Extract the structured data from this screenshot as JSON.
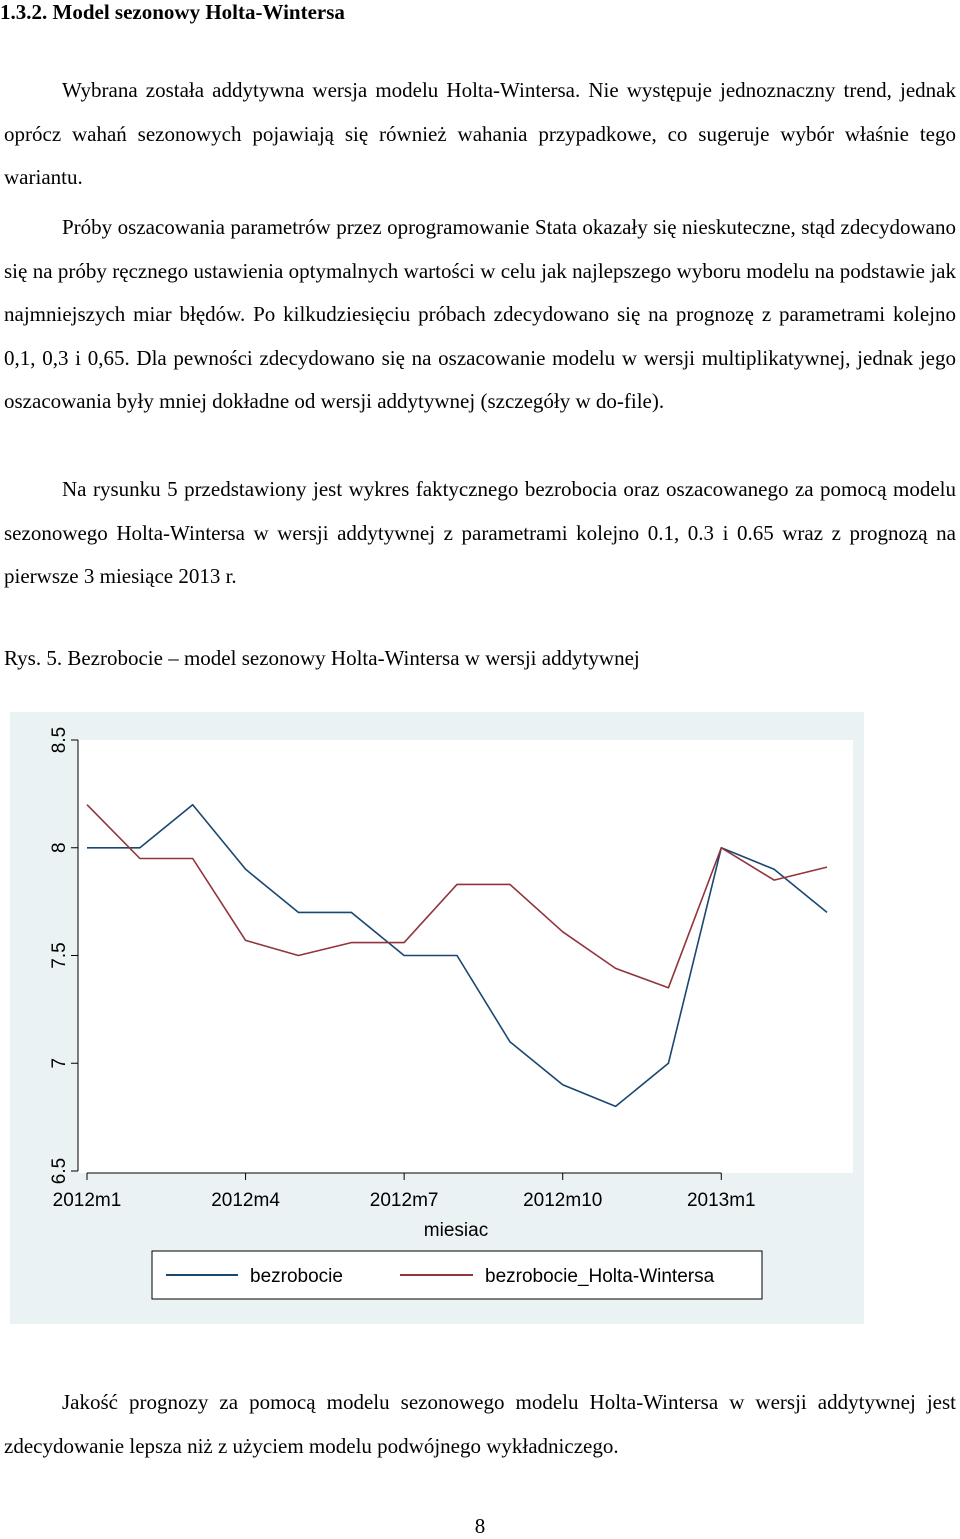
{
  "document": {
    "section_heading": "1.3.2. Model sezonowy Holta-Wintersa",
    "paragraphs": [
      "Wybrana została addytywna wersja modelu Holta-Wintersa. Nie występuje jednoznaczny trend, jednak oprócz wahań sezonowych pojawiają się również wahania przypadkowe, co sugeruje wybór właśnie tego wariantu.",
      "Próby oszacowania parametrów przez oprogramowanie Stata okazały się nieskuteczne, stąd zdecydowano się na próby ręcznego ustawienia optymalnych wartości w celu jak najlepszego wyboru modelu na podstawie jak najmniejszych miar błędów. Po kilkudziesięciu próbach zdecydowano się na prognozę z parametrami kolejno 0,1, 0,3 i 0,65. Dla pewności zdecydowano się na oszacowanie modelu w wersji multiplikatywnej, jednak jego oszacowania były mniej dokładne od wersji addytywnej (szczegóły w do-file).",
      "Na rysunku 5 przedstawiony jest wykres faktycznego bezrobocia oraz oszacowanego za pomocą modelu sezonowego Holta-Wintersa w wersji addytywnej z parametrami kolejno 0.1, 0.3 i 0.65 wraz z prognozą na pierwsze 3 miesiące 2013 r."
    ],
    "figure_caption": "Rys. 5. Bezrobocie – model sezonowy Holta-Wintersa w wersji addytywnej",
    "closing_paragraph": "Jakość prognozy za pomocą modelu sezonowego modelu Holta-Wintersa w wersji addytywnej jest zdecydowanie lepsza niż z użyciem modelu podwójnego wykładniczego.",
    "page_number": "8"
  },
  "chart_data": {
    "type": "line",
    "xlabel": "miesiac",
    "ylabel": "",
    "x_tick_labels": [
      "2012m1",
      "2012m4",
      "2012m7",
      "2012m10",
      "2013m1"
    ],
    "y_tick_labels": [
      "6.5",
      "7",
      "7.5",
      "8",
      "8.5"
    ],
    "ylim": [
      6.5,
      8.5
    ],
    "x": [
      1,
      2,
      3,
      4,
      5,
      6,
      7,
      8,
      9,
      10,
      11,
      12,
      13,
      14,
      15
    ],
    "x_tick_positions": [
      1,
      4,
      7,
      10,
      13
    ],
    "legend_position": "bottom",
    "grid": false,
    "series": [
      {
        "name": "bezrobocie",
        "color": "#1a476f",
        "values": [
          8.0,
          8.0,
          8.2,
          7.9,
          7.7,
          7.7,
          7.5,
          7.5,
          7.1,
          6.9,
          6.8,
          7.0,
          8.0,
          7.9,
          7.7
        ]
      },
      {
        "name": "bezrobocie_Holta-Wintersa",
        "color": "#90353b",
        "values": [
          8.2,
          7.95,
          7.95,
          7.57,
          7.5,
          7.56,
          7.56,
          7.83,
          7.83,
          7.61,
          7.44,
          7.35,
          8.0,
          7.85,
          7.91
        ]
      }
    ]
  }
}
